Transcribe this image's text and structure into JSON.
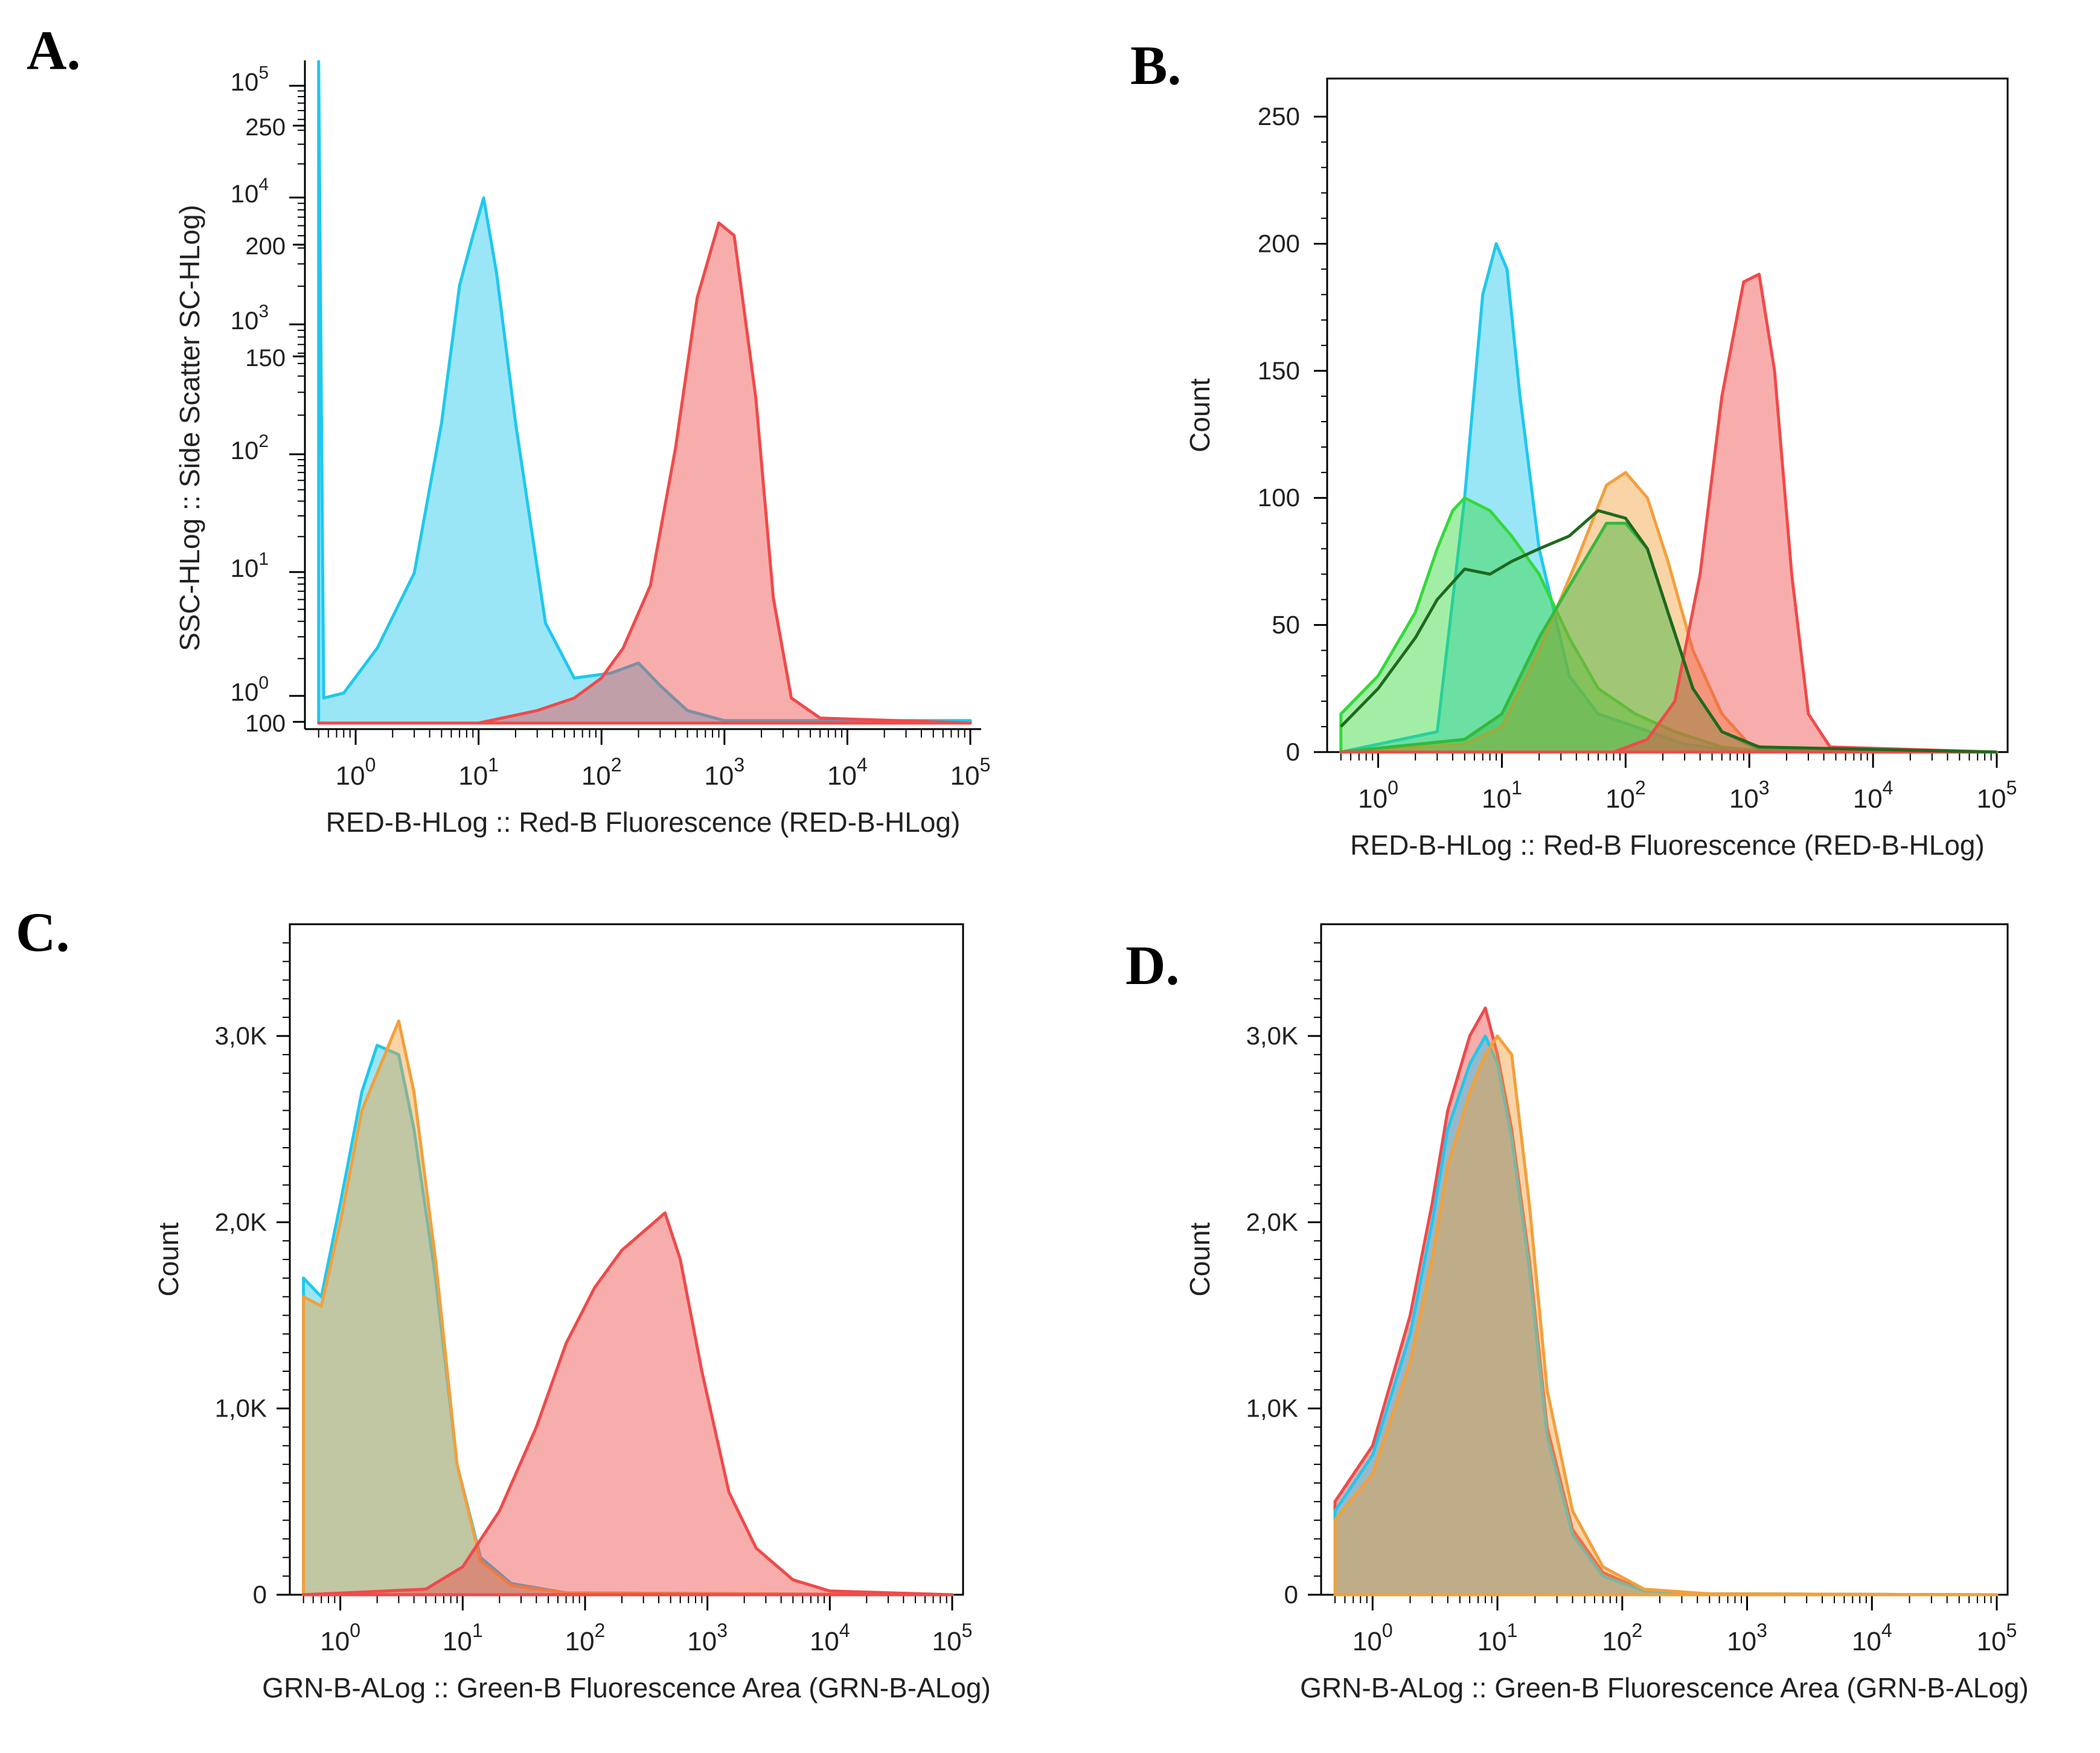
{
  "figure": {
    "panels": [
      {
        "letter": "A."
      },
      {
        "letter": "B."
      },
      {
        "letter": "C."
      },
      {
        "letter": "D."
      }
    ]
  },
  "colors": {
    "cyan": "#1fc8ee",
    "red": "#f04a4a",
    "orange": "#f2a03c",
    "green_light": "#33d93a",
    "green_mid": "#36b83c",
    "green_dark": "#1e6a1e",
    "axis": "#000000"
  },
  "chart_data": [
    {
      "panel": "A.",
      "type": "area",
      "xscale": "log",
      "xlim": [
        0.5,
        100000
      ],
      "xlabel": "RED-B-HLog :: Red-B Fluorescence (RED-B-HLog)",
      "ylabel": "SSC-HLog :: Side Scatter  SC-HLog)",
      "x_ticks": [
        "10^0",
        "10^1",
        "10^2",
        "10^3",
        "10^4",
        "10^5"
      ],
      "y_ticks_count": [
        "100",
        "150",
        "200",
        "250"
      ],
      "y_ticks_log": [
        "10^0",
        "10^1",
        "10^2",
        "10^3",
        "10^4",
        "10^5"
      ],
      "ylim": [
        0,
        265
      ],
      "series": [
        {
          "color": "cyan",
          "points": [
            [
              0.5,
              265
            ],
            [
              0.55,
              10
            ],
            [
              0.8,
              12
            ],
            [
              1.5,
              30
            ],
            [
              3,
              60
            ],
            [
              5,
              120
            ],
            [
              7,
              175
            ],
            [
              9,
              195
            ],
            [
              11,
              210
            ],
            [
              14,
              180
            ],
            [
              20,
              120
            ],
            [
              35,
              40
            ],
            [
              60,
              18
            ],
            [
              120,
              20
            ],
            [
              200,
              24
            ],
            [
              300,
              15
            ],
            [
              500,
              5
            ],
            [
              1000,
              1
            ],
            [
              100000,
              1
            ]
          ]
        },
        {
          "color": "red",
          "points": [
            [
              0.5,
              0
            ],
            [
              10,
              0
            ],
            [
              30,
              5
            ],
            [
              60,
              10
            ],
            [
              100,
              18
            ],
            [
              150,
              30
            ],
            [
              250,
              55
            ],
            [
              400,
              110
            ],
            [
              600,
              170
            ],
            [
              900,
              200
            ],
            [
              1200,
              195
            ],
            [
              1800,
              130
            ],
            [
              2500,
              50
            ],
            [
              3500,
              10
            ],
            [
              6000,
              2
            ],
            [
              100000,
              0
            ]
          ]
        }
      ]
    },
    {
      "panel": "B.",
      "type": "area",
      "xscale": "log",
      "xlim": [
        0.5,
        100000
      ],
      "ylim": [
        0,
        265
      ],
      "xlabel": "RED-B-HLog :: Red-B Fluorescence (RED-B-HLog)",
      "ylabel": "Count",
      "x_ticks": [
        "10^0",
        "10^1",
        "10^2",
        "10^3",
        "10^4",
        "10^5"
      ],
      "y_ticks": [
        0,
        50,
        100,
        150,
        200,
        250
      ],
      "series": [
        {
          "color": "cyan",
          "points": [
            [
              0.5,
              0
            ],
            [
              3,
              8
            ],
            [
              5,
              100
            ],
            [
              7,
              180
            ],
            [
              9,
              200
            ],
            [
              11,
              190
            ],
            [
              14,
              140
            ],
            [
              20,
              80
            ],
            [
              35,
              30
            ],
            [
              60,
              15
            ],
            [
              120,
              10
            ],
            [
              300,
              3
            ],
            [
              1000,
              0
            ],
            [
              100000,
              0
            ]
          ]
        },
        {
          "color": "green_light",
          "points": [
            [
              0.5,
              15
            ],
            [
              1,
              30
            ],
            [
              2,
              55
            ],
            [
              3,
              80
            ],
            [
              4,
              95
            ],
            [
              5,
              100
            ],
            [
              8,
              95
            ],
            [
              12,
              85
            ],
            [
              20,
              70
            ],
            [
              35,
              45
            ],
            [
              60,
              25
            ],
            [
              120,
              15
            ],
            [
              250,
              8
            ],
            [
              600,
              2
            ],
            [
              1500,
              0
            ],
            [
              100000,
              0
            ]
          ]
        },
        {
          "color": "orange",
          "points": [
            [
              0.5,
              0
            ],
            [
              5,
              3
            ],
            [
              10,
              10
            ],
            [
              20,
              40
            ],
            [
              40,
              75
            ],
            [
              70,
              105
            ],
            [
              100,
              110
            ],
            [
              150,
              100
            ],
            [
              220,
              75
            ],
            [
              350,
              40
            ],
            [
              600,
              15
            ],
            [
              1000,
              3
            ],
            [
              2000,
              0
            ],
            [
              100000,
              0
            ]
          ]
        },
        {
          "color": "green_mid",
          "points": [
            [
              0.5,
              0
            ],
            [
              5,
              5
            ],
            [
              10,
              15
            ],
            [
              20,
              45
            ],
            [
              40,
              70
            ],
            [
              70,
              90
            ],
            [
              100,
              90
            ],
            [
              150,
              80
            ],
            [
              220,
              55
            ],
            [
              350,
              25
            ],
            [
              600,
              8
            ],
            [
              1200,
              1
            ],
            [
              100000,
              0
            ]
          ]
        },
        {
          "color": "red",
          "points": [
            [
              0.5,
              0
            ],
            [
              80,
              0
            ],
            [
              150,
              5
            ],
            [
              250,
              20
            ],
            [
              400,
              70
            ],
            [
              600,
              140
            ],
            [
              900,
              185
            ],
            [
              1200,
              188
            ],
            [
              1600,
              150
            ],
            [
              2200,
              70
            ],
            [
              3000,
              15
            ],
            [
              4500,
              2
            ],
            [
              100000,
              0
            ]
          ]
        },
        {
          "color": "green_dark",
          "line_only": true,
          "points": [
            [
              0.5,
              10
            ],
            [
              1,
              25
            ],
            [
              2,
              45
            ],
            [
              3,
              60
            ],
            [
              5,
              72
            ],
            [
              8,
              70
            ],
            [
              12,
              75
            ],
            [
              20,
              80
            ],
            [
              35,
              85
            ],
            [
              60,
              95
            ],
            [
              100,
              92
            ],
            [
              150,
              80
            ],
            [
              220,
              55
            ],
            [
              350,
              25
            ],
            [
              600,
              8
            ],
            [
              1200,
              2
            ],
            [
              100000,
              0
            ]
          ]
        }
      ]
    },
    {
      "panel": "C.",
      "type": "area",
      "xscale": "log",
      "xlim": [
        0.5,
        100000
      ],
      "ylim": [
        0,
        3600
      ],
      "xlabel": "GRN-B-ALog :: Green-B Fluorescence Area (GRN-B-ALog)",
      "ylabel": "Count",
      "x_ticks": [
        "10^0",
        "10^1",
        "10^2",
        "10^3",
        "10^4",
        "10^5"
      ],
      "y_ticks": [
        "0",
        "1,0K",
        "2,0K",
        "3,0K"
      ],
      "series": [
        {
          "color": "cyan",
          "points": [
            [
              0.5,
              1700
            ],
            [
              0.7,
              1600
            ],
            [
              1,
              2100
            ],
            [
              1.5,
              2700
            ],
            [
              2,
              2950
            ],
            [
              3,
              2900
            ],
            [
              4,
              2500
            ],
            [
              6,
              1700
            ],
            [
              9,
              700
            ],
            [
              14,
              200
            ],
            [
              25,
              60
            ],
            [
              70,
              10
            ],
            [
              100000,
              0
            ]
          ]
        },
        {
          "color": "orange",
          "points": [
            [
              0.5,
              1600
            ],
            [
              0.7,
              1550
            ],
            [
              1,
              2000
            ],
            [
              1.5,
              2600
            ],
            [
              2,
              2800
            ],
            [
              3,
              3080
            ],
            [
              4,
              2700
            ],
            [
              6,
              1800
            ],
            [
              9,
              700
            ],
            [
              14,
              180
            ],
            [
              25,
              50
            ],
            [
              70,
              10
            ],
            [
              100000,
              0
            ]
          ]
        },
        {
          "color": "red",
          "points": [
            [
              0.5,
              0
            ],
            [
              5,
              30
            ],
            [
              10,
              150
            ],
            [
              20,
              450
            ],
            [
              40,
              900
            ],
            [
              70,
              1350
            ],
            [
              120,
              1650
            ],
            [
              200,
              1850
            ],
            [
              300,
              1950
            ],
            [
              450,
              2050
            ],
            [
              600,
              1800
            ],
            [
              900,
              1200
            ],
            [
              1500,
              550
            ],
            [
              2500,
              250
            ],
            [
              5000,
              80
            ],
            [
              10000,
              20
            ],
            [
              100000,
              0
            ]
          ]
        }
      ]
    },
    {
      "panel": "D.",
      "type": "area",
      "xscale": "log",
      "xlim": [
        0.5,
        100000
      ],
      "ylim": [
        0,
        3600
      ],
      "xlabel": "GRN-B-ALog :: Green-B Fluorescence Area (GRN-B-ALog)",
      "ylabel": "Count",
      "x_ticks": [
        "10^0",
        "10^1",
        "10^2",
        "10^3",
        "10^4",
        "10^5"
      ],
      "y_ticks": [
        "0",
        "1,0K",
        "2,0K",
        "3,0K"
      ],
      "series": [
        {
          "color": "red",
          "points": [
            [
              0.5,
              500
            ],
            [
              1,
              800
            ],
            [
              2,
              1500
            ],
            [
              3,
              2100
            ],
            [
              4,
              2600
            ],
            [
              6,
              3000
            ],
            [
              8,
              3150
            ],
            [
              10,
              2900
            ],
            [
              13,
              2500
            ],
            [
              18,
              1800
            ],
            [
              25,
              900
            ],
            [
              40,
              350
            ],
            [
              70,
              120
            ],
            [
              150,
              20
            ],
            [
              500,
              5
            ],
            [
              100000,
              0
            ]
          ]
        },
        {
          "color": "cyan",
          "points": [
            [
              0.5,
              450
            ],
            [
              1,
              750
            ],
            [
              2,
              1400
            ],
            [
              3,
              2000
            ],
            [
              4,
              2500
            ],
            [
              6,
              2850
            ],
            [
              8,
              3000
            ],
            [
              10,
              2850
            ],
            [
              13,
              2450
            ],
            [
              18,
              1750
            ],
            [
              25,
              850
            ],
            [
              40,
              320
            ],
            [
              70,
              100
            ],
            [
              150,
              20
            ],
            [
              500,
              5
            ],
            [
              100000,
              0
            ]
          ]
        },
        {
          "color": "orange",
          "points": [
            [
              0.5,
              400
            ],
            [
              1,
              650
            ],
            [
              2,
              1250
            ],
            [
              3,
              1800
            ],
            [
              4,
              2300
            ],
            [
              6,
              2700
            ],
            [
              8,
              2900
            ],
            [
              10,
              3000
            ],
            [
              13,
              2900
            ],
            [
              18,
              2100
            ],
            [
              25,
              1100
            ],
            [
              40,
              450
            ],
            [
              70,
              150
            ],
            [
              150,
              30
            ],
            [
              500,
              5
            ],
            [
              100000,
              0
            ]
          ]
        }
      ]
    }
  ]
}
